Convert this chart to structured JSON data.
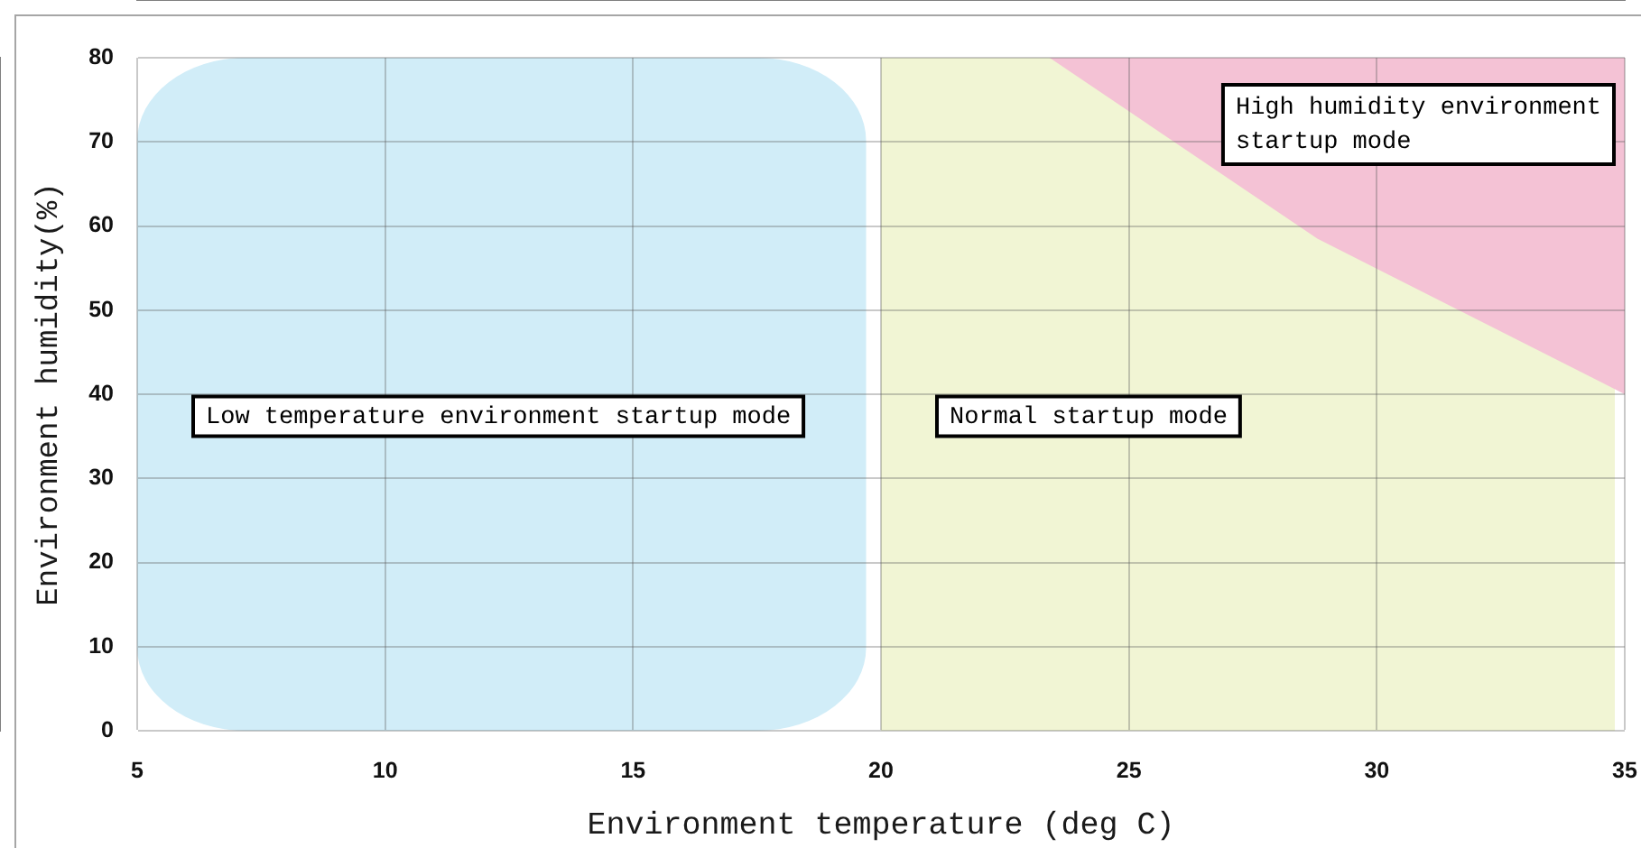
{
  "chart_data": {
    "type": "area",
    "xlabel": "Environment temperature (deg C)",
    "ylabel": "Environment humidity(%)",
    "xlim": [
      5,
      35
    ],
    "ylim": [
      0,
      80
    ],
    "xticks": [
      5,
      10,
      15,
      20,
      25,
      30,
      35
    ],
    "yticks": [
      0,
      10,
      20,
      30,
      40,
      50,
      60,
      70,
      80
    ],
    "grid": true,
    "bands": [
      {
        "axis": "x",
        "from": 5,
        "to": 19.7,
        "label": "Low temperature environment startup mode",
        "color": "#d1edf8"
      },
      {
        "axis": "x",
        "from": 20,
        "to": 34.8,
        "label": "Normal startup mode",
        "color": "#f1f5d4"
      }
    ],
    "series": [
      {
        "name": "High humidity environment startup mode",
        "color": "#f4c2d5",
        "x": [
          23.4,
          28.8,
          35,
          35
        ],
        "values": [
          80,
          58.5,
          40,
          80
        ]
      }
    ]
  }
}
